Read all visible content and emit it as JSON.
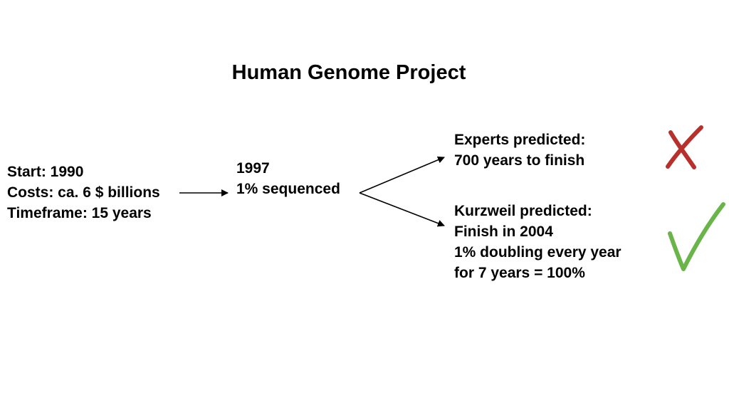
{
  "title": "Human Genome Project",
  "start": {
    "line1": "Start: 1990",
    "line2": "Costs: ca. 6 $ billions",
    "line3": "Timeframe: 15 years"
  },
  "progress": {
    "line1": "1997",
    "line2": "1% sequenced"
  },
  "experts": {
    "line1": "Experts predicted:",
    "line2": "700 years to finish"
  },
  "kurzweil": {
    "line1": "Kurzweil predicted:",
    "line2": "Finish in 2004",
    "line3": "1% doubling every year",
    "line4": "for 7 years = 100%"
  },
  "colors": {
    "wrong_mark": "#b8302c",
    "correct_mark": "#6ab54a",
    "text": "#000000"
  },
  "icons": {
    "wrong": "cross-mark-icon",
    "correct": "check-mark-icon"
  }
}
